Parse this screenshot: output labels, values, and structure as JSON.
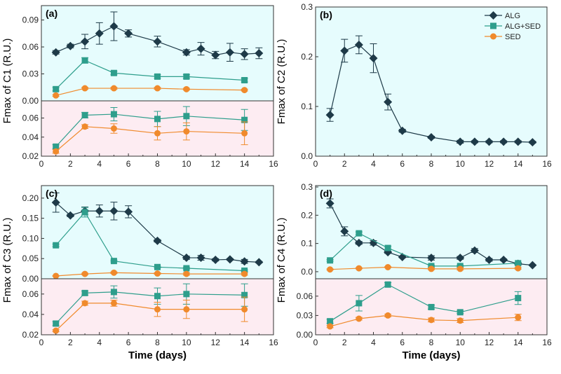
{
  "series_styles": {
    "ALG": {
      "color": "#1e3a48",
      "marker": "diamond"
    },
    "ALG+SED": {
      "color": "#2e9e8c",
      "marker": "square"
    },
    "SED": {
      "color": "#f08a2c",
      "marker": "circle"
    }
  },
  "background_colors": {
    "upper": "#e6fcfd",
    "lower": "#fdecf2"
  },
  "chart_data": [
    {
      "type": "line",
      "panel_label": "(a)",
      "ylabel": "Fmax of C1 (R.U.)",
      "xlabel": "",
      "xlim": [
        0,
        16
      ],
      "xticks": [
        0,
        2,
        4,
        6,
        8,
        10,
        12,
        14,
        16
      ],
      "subplots": [
        {
          "ylim": [
            0,
            0.106
          ],
          "yticks": [
            "0.00",
            "0.03",
            "0.06",
            "0.09"
          ],
          "background": "upper",
          "series": [
            {
              "name": "ALG",
              "x": [
                1,
                2,
                3,
                4,
                5,
                6,
                8,
                10,
                11,
                12,
                13,
                14,
                15
              ],
              "y": [
                0.054,
                0.061,
                0.066,
                0.075,
                0.083,
                0.075,
                0.066,
                0.054,
                0.058,
                0.051,
                0.054,
                0.052,
                0.053
              ],
              "err": [
                0.002,
                0.002,
                0.008,
                0.012,
                0.016,
                0.004,
                0.006,
                0.003,
                0.007,
                0.004,
                0.01,
                0.006,
                0.006
              ]
            },
            {
              "name": "ALG+SED",
              "x": [
                1,
                3,
                5,
                8,
                10,
                14
              ],
              "y": [
                0.013,
                0.045,
                0.031,
                0.027,
                0.027,
                0.023
              ],
              "err": [
                0.002,
                0.003,
                0.002,
                0.002,
                0.002,
                0.002
              ]
            },
            {
              "name": "SED",
              "x": [
                1,
                3,
                5,
                8,
                10,
                14
              ],
              "y": [
                0.006,
                0.014,
                0.014,
                0.014,
                0.013,
                0.012
              ],
              "err": [
                0.001,
                0.001,
                0.001,
                0.001,
                0.001,
                0.001
              ]
            }
          ]
        },
        {
          "ylim": [
            0.02,
            0.078
          ],
          "yticks": [
            "0.02",
            "0.04",
            "0.06"
          ],
          "background": "lower",
          "series": [
            {
              "name": "ALG+SED",
              "x": [
                1,
                3,
                5,
                8,
                10,
                14
              ],
              "y": [
                0.03,
                0.063,
                0.064,
                0.059,
                0.062,
                0.058
              ],
              "err": [
                0.002,
                0.003,
                0.007,
                0.008,
                0.01,
                0.011
              ]
            },
            {
              "name": "SED",
              "x": [
                1,
                3,
                5,
                8,
                10,
                14
              ],
              "y": [
                0.025,
                0.051,
                0.049,
                0.044,
                0.046,
                0.044
              ],
              "err": [
                0.002,
                0.002,
                0.005,
                0.007,
                0.009,
                0.012
              ]
            }
          ]
        }
      ]
    },
    {
      "type": "line",
      "panel_label": "(b)",
      "ylabel": "Fmax of C2 (R.U.)",
      "xlabel": "",
      "xlim": [
        0,
        16
      ],
      "xticks": [
        0,
        2,
        4,
        6,
        8,
        10,
        12,
        14,
        16
      ],
      "legend": {
        "position": "top-right",
        "entries": [
          "ALG",
          "ALG+SED",
          "SED"
        ]
      },
      "subplots": [
        {
          "ylim": [
            0,
            0.3
          ],
          "yticks": [
            "0.0",
            "0.1",
            "0.2",
            "0.3"
          ],
          "background": "upper",
          "series": [
            {
              "name": "ALG",
              "x": [
                1,
                2,
                3,
                4,
                5,
                6,
                8,
                10,
                11,
                12,
                13,
                14,
                15
              ],
              "y": [
                0.083,
                0.212,
                0.224,
                0.197,
                0.109,
                0.051,
                0.038,
                0.029,
                0.029,
                0.029,
                0.029,
                0.029,
                0.028
              ],
              "err": [
                0.013,
                0.023,
                0.018,
                0.029,
                0.016,
                0.003,
                0.002,
                0.003,
                0.002,
                0.002,
                0.002,
                0.002,
                0.002
              ]
            }
          ]
        }
      ]
    },
    {
      "type": "line",
      "panel_label": "(c)",
      "ylabel": "Fmax of C3 (R.U.)",
      "xlabel": "Time (days)",
      "xlim": [
        0,
        16
      ],
      "xticks": [
        0,
        2,
        4,
        6,
        8,
        10,
        12,
        14,
        16
      ],
      "subplots": [
        {
          "ylim": [
            0,
            0.231
          ],
          "yticks": [
            "0.00",
            "0.05",
            "0.10",
            "0.15",
            "0.20"
          ],
          "background": "upper",
          "series": [
            {
              "name": "ALG",
              "x": [
                1,
                2,
                3,
                4,
                5,
                6,
                8,
                10,
                11,
                12,
                13,
                14,
                15
              ],
              "y": [
                0.189,
                0.157,
                0.168,
                0.168,
                0.168,
                0.166,
                0.094,
                0.052,
                0.052,
                0.047,
                0.048,
                0.043,
                0.041
              ],
              "err": [
                0.024,
                0.003,
                0.01,
                0.015,
                0.022,
                0.015,
                0.003,
                0.004,
                0.006,
                0.003,
                0.002,
                0.005,
                0.002
              ]
            },
            {
              "name": "ALG+SED",
              "x": [
                1,
                3,
                5,
                8,
                10,
                14
              ],
              "y": [
                0.083,
                0.165,
                0.044,
                0.029,
                0.026,
                0.02
              ],
              "err": [
                0.003,
                0.012,
                0.002,
                0.002,
                0.002,
                0.002
              ]
            },
            {
              "name": "SED",
              "x": [
                1,
                3,
                5,
                8,
                10,
                14
              ],
              "y": [
                0.007,
                0.012,
                0.015,
                0.013,
                0.012,
                0.012
              ],
              "err": [
                0.001,
                0.002,
                0.002,
                0.002,
                0.003,
                0.003
              ]
            }
          ]
        },
        {
          "ylim": [
            0.02,
            0.075
          ],
          "yticks": [
            "0.02",
            "0.04",
            "0.06"
          ],
          "background": "lower",
          "series": [
            {
              "name": "ALG+SED",
              "x": [
                1,
                3,
                5,
                8,
                10,
                14
              ],
              "y": [
                0.031,
                0.061,
                0.062,
                0.058,
                0.06,
                0.059
              ],
              "err": [
                0.002,
                0.002,
                0.006,
                0.008,
                0.01,
                0.011
              ]
            },
            {
              "name": "SED",
              "x": [
                1,
                3,
                5,
                8,
                10,
                14
              ],
              "y": [
                0.024,
                0.051,
                0.051,
                0.045,
                0.045,
                0.045
              ],
              "err": [
                0.001,
                0.002,
                0.003,
                0.007,
                0.009,
                0.012
              ]
            }
          ]
        }
      ]
    },
    {
      "type": "line",
      "panel_label": "(d)",
      "ylabel": "Fmax of C4 (R.U.)",
      "xlabel": "Time (days)",
      "xlim": [
        0,
        16
      ],
      "xticks": [
        0,
        2,
        4,
        6,
        8,
        10,
        12,
        14,
        16
      ],
      "subplots": [
        {
          "ylim": [
            -0.025,
            0.305
          ],
          "yticks": [
            "0.0",
            "0.1",
            "0.2",
            "0.3"
          ],
          "background": "upper",
          "series": [
            {
              "name": "ALG",
              "x": [
                1,
                2,
                3,
                4,
                5,
                6,
                8,
                10,
                11,
                12,
                13,
                14,
                15
              ],
              "y": [
                0.242,
                0.143,
                0.102,
                0.102,
                0.069,
                0.052,
                0.049,
                0.049,
                0.075,
                0.042,
                0.042,
                0.028,
                0.023
              ],
              "err": [
                0.016,
                0.016,
                0.005,
                0.008,
                0.004,
                0.003,
                0.008,
                0.005,
                0.007,
                0.005,
                0.003,
                0.004,
                0.002
              ]
            },
            {
              "name": "ALG+SED",
              "x": [
                1,
                3,
                5,
                8,
                10,
                14
              ],
              "y": [
                0.04,
                0.136,
                0.084,
                0.02,
                0.02,
                0.03
              ],
              "err": [
                0.003,
                0.005,
                0.006,
                0.003,
                0.003,
                0.003
              ]
            },
            {
              "name": "SED",
              "x": [
                1,
                3,
                5,
                8,
                10,
                14
              ],
              "y": [
                0.008,
                0.012,
                0.016,
                0.01,
                0.01,
                0.012
              ],
              "err": [
                0.002,
                0.002,
                0.002,
                0.003,
                0.004,
                0.003
              ]
            }
          ]
        },
        {
          "ylim": [
            0,
            0.087
          ],
          "yticks": [
            "0.00",
            "0.03",
            "0.06"
          ],
          "background": "lower",
          "series": [
            {
              "name": "ALG+SED",
              "x": [
                1,
                3,
                5,
                8,
                10,
                14
              ],
              "y": [
                0.021,
                0.049,
                0.078,
                0.043,
                0.035,
                0.057
              ],
              "err": [
                0.003,
                0.012,
                0.003,
                0.003,
                0.002,
                0.01
              ]
            },
            {
              "name": "SED",
              "x": [
                1,
                3,
                5,
                8,
                10,
                14
              ],
              "y": [
                0.013,
                0.025,
                0.03,
                0.023,
                0.022,
                0.027
              ],
              "err": [
                0.002,
                0.002,
                0.002,
                0.003,
                0.003,
                0.005
              ]
            }
          ]
        }
      ]
    }
  ]
}
